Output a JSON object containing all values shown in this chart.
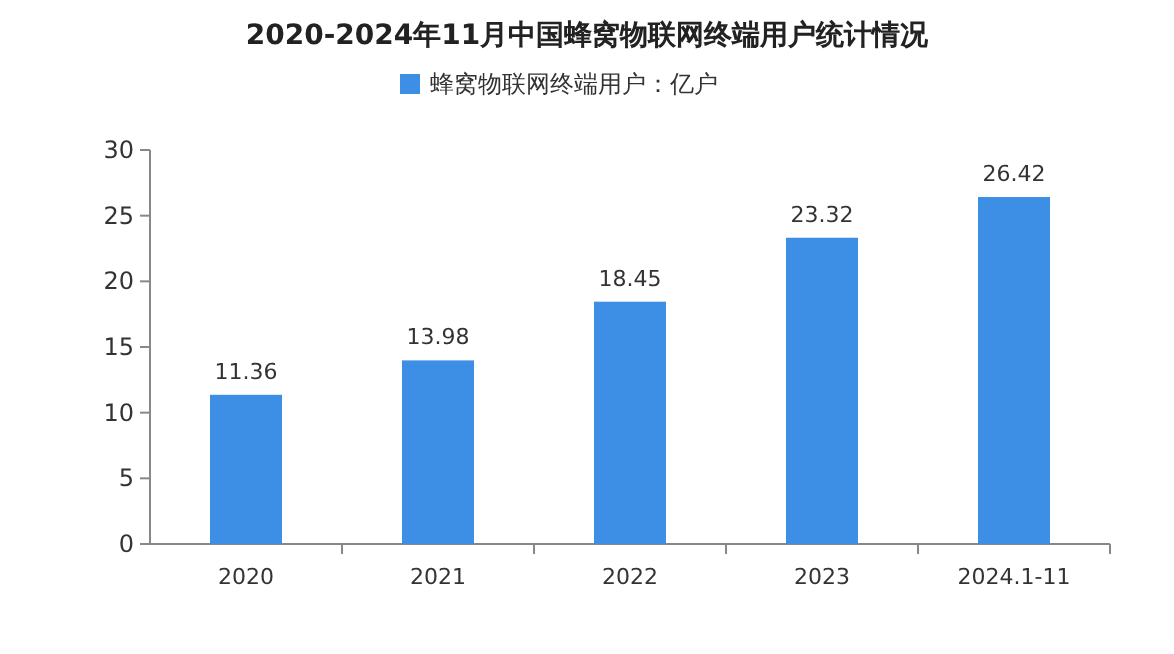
{
  "chart_data": {
    "type": "bar",
    "title": "2020-2024年11月中国蜂窝物联网终端用户统计情况",
    "categories": [
      "2020",
      "2021",
      "2022",
      "2023",
      "2024.1-11"
    ],
    "series": [
      {
        "name": "蜂窝物联网终端用户：亿户",
        "color": "#3d8fe6",
        "values": [
          11.36,
          13.98,
          18.45,
          23.32,
          26.42
        ]
      }
    ],
    "ylim": [
      0,
      30
    ],
    "yticks": [
      0,
      5,
      10,
      15,
      20,
      25,
      30
    ],
    "data_labels": true,
    "legend": "top"
  }
}
